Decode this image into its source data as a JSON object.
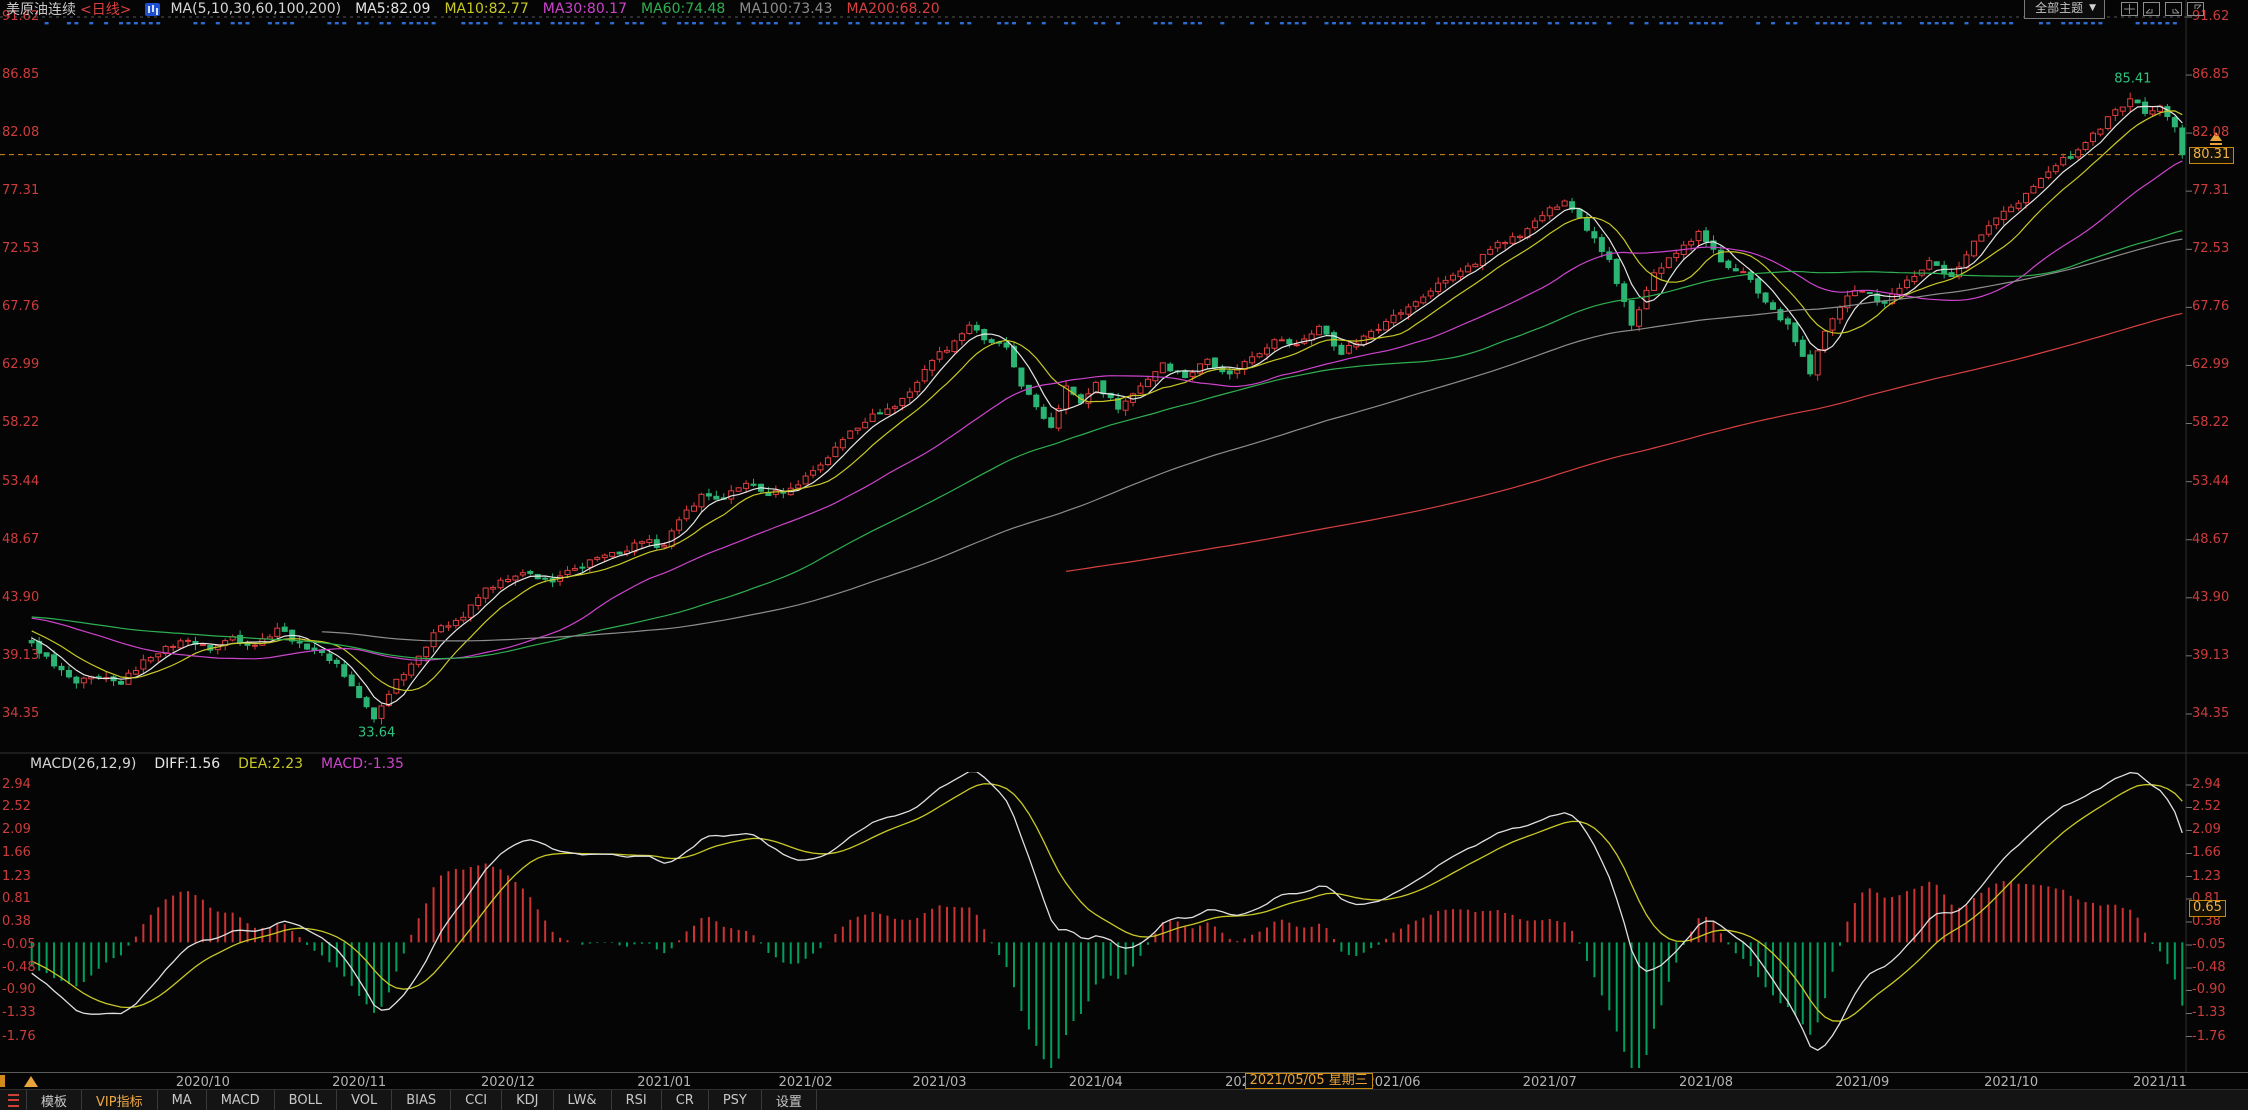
{
  "header": {
    "symbol": "美原油连续",
    "period": "<日线>",
    "ma_title": "MA(5,10,30,60,100,200)",
    "ma_values": [
      {
        "label": "MA5:82.09",
        "color": "#e6e6e6"
      },
      {
        "label": "MA10:82.77",
        "color": "#c9c926"
      },
      {
        "label": "MA30:80.17",
        "color": "#cc44cc"
      },
      {
        "label": "MA60:74.48",
        "color": "#2faf50"
      },
      {
        "label": "MA100:73.43",
        "color": "#8d8d8d"
      },
      {
        "label": "MA200:68.20",
        "color": "#d84040"
      }
    ]
  },
  "top_controls": {
    "dropdown_label": "全部主题",
    "caret": "▼",
    "icons": [
      "layout-grid-icon",
      "layout-bottom-left-icon",
      "layout-bottom-right-icon",
      "layout-top-right-icon"
    ]
  },
  "tags": {
    "price": "80.31",
    "macd": "0.65"
  },
  "macd_header": {
    "title": "MACD(26,12,9)",
    "diff": "DIFF:1.56",
    "diff_color": "#e6e6e6",
    "dea": "DEA:2.23",
    "dea_color": "#c9c926",
    "macd": "MACD:-1.35",
    "macd_color": "#cc44cc"
  },
  "x_axis": {
    "months": [
      {
        "label": "2020/10",
        "bar": 23
      },
      {
        "label": "2020/11",
        "bar": 44
      },
      {
        "label": "2020/12",
        "bar": 64
      },
      {
        "label": "2021/01",
        "bar": 85
      },
      {
        "label": "2021/02",
        "bar": 104
      },
      {
        "label": "2021/03",
        "bar": 122
      },
      {
        "label": "2021/04",
        "bar": 143
      },
      {
        "label": "2021/05",
        "bar": 164
      },
      {
        "label": "2021/06",
        "bar": 183
      },
      {
        "label": "2021/07",
        "bar": 204
      },
      {
        "label": "2021/08",
        "bar": 225
      },
      {
        "label": "2021/09",
        "bar": 246
      },
      {
        "label": "2021/10",
        "bar": 266
      },
      {
        "label": "2021/11",
        "bar": 286
      }
    ],
    "highlight": {
      "label": "2021/05/05 星期三",
      "bar": 163
    }
  },
  "footer": {
    "items": [
      "模板",
      "VIP指标",
      "MA",
      "MACD",
      "BOLL",
      "VOL",
      "BIAS",
      "CCI",
      "KDJ",
      "LW&",
      "RSI",
      "CR",
      "PSY",
      "设置"
    ],
    "active": "VIP指标"
  },
  "chart_data": {
    "type": "candlestick",
    "title": "美原油连续 <日线> — WTI crude oil continuous daily candles with MA(5,10,30,60,100,200) overlay and MACD(26,12,9) sub-chart",
    "price_axis": {
      "ticks": [
        91.62,
        86.85,
        82.08,
        77.31,
        72.53,
        67.76,
        62.99,
        58.22,
        53.44,
        48.67,
        43.9,
        39.13,
        34.35
      ]
    },
    "macd_axis": {
      "ticks": [
        2.94,
        2.52,
        2.09,
        1.66,
        1.23,
        0.81,
        0.38,
        -0.05,
        -0.48,
        -0.9,
        -1.33,
        -1.76
      ]
    },
    "last_price": 80.31,
    "dashed_price_line": 80.31,
    "peak": {
      "bar": 282,
      "price": 85.41,
      "label": "85.41"
    },
    "trough": {
      "bar": 46,
      "price": 33.64,
      "label": "33.64"
    },
    "bars": 290,
    "history": 60,
    "noise": 0.55,
    "ma_periods": [
      {
        "n": 5,
        "color": "#e6e6e6"
      },
      {
        "n": 10,
        "color": "#c9c926"
      },
      {
        "n": 30,
        "color": "#cc44cc"
      },
      {
        "n": 60,
        "color": "#2faf50"
      },
      {
        "n": 100,
        "color": "#8d8d8d"
      },
      {
        "n": 200,
        "color": "#d84040"
      }
    ],
    "macd_params": {
      "fast": 12,
      "slow": 26,
      "signal": 9
    },
    "colors": {
      "up": "#e03e3e",
      "down": "#2cb474",
      "hist_up": "#cc3333",
      "hist_down": "#00a05c",
      "diff": "#e0e0e0",
      "dea": "#c9c926",
      "axis_text": "#cc3c3c",
      "grid": "#555555",
      "accent_orange": "#d28a1e",
      "signal_dot": "#2d6bd0",
      "annotation_green": "#2ec47e"
    },
    "anchors": [
      [
        -60,
        41.8
      ],
      [
        -52,
        42.6
      ],
      [
        -45,
        42.1
      ],
      [
        -38,
        42.8
      ],
      [
        -30,
        42.4
      ],
      [
        -22,
        42.9
      ],
      [
        -15,
        43.1
      ],
      [
        -8,
        42.0
      ],
      [
        -3,
        40.8
      ],
      [
        0,
        40.2
      ],
      [
        3,
        38.3
      ],
      [
        6,
        36.9
      ],
      [
        9,
        37.4
      ],
      [
        12,
        36.8
      ],
      [
        15,
        38.8
      ],
      [
        18,
        39.9
      ],
      [
        21,
        40.4
      ],
      [
        24,
        39.6
      ],
      [
        27,
        40.7
      ],
      [
        30,
        40.0
      ],
      [
        33,
        41.4
      ],
      [
        36,
        40.2
      ],
      [
        39,
        39.4
      ],
      [
        41,
        38.5
      ],
      [
        44,
        35.7
      ],
      [
        46,
        33.95
      ],
      [
        49,
        37.2
      ],
      [
        52,
        39.1
      ],
      [
        55,
        41.6
      ],
      [
        58,
        42.3
      ],
      [
        61,
        44.7
      ],
      [
        64,
        45.4
      ],
      [
        67,
        45.9
      ],
      [
        70,
        45.2
      ],
      [
        73,
        46.3
      ],
      [
        76,
        47.2
      ],
      [
        79,
        47.5
      ],
      [
        82,
        48.5
      ],
      [
        85,
        48.2
      ],
      [
        87,
        50.3
      ],
      [
        90,
        52.4
      ],
      [
        93,
        52.0
      ],
      [
        96,
        53.3
      ],
      [
        99,
        52.3
      ],
      [
        102,
        52.9
      ],
      [
        104,
        53.9
      ],
      [
        107,
        55.4
      ],
      [
        110,
        57.6
      ],
      [
        113,
        59.0
      ],
      [
        116,
        59.6
      ],
      [
        119,
        61.6
      ],
      [
        121,
        63.4
      ],
      [
        124,
        65.0
      ],
      [
        126,
        66.3
      ],
      [
        128,
        65.1
      ],
      [
        131,
        64.5
      ],
      [
        133,
        61.3
      ],
      [
        135,
        59.6
      ],
      [
        137,
        57.9
      ],
      [
        139,
        61.3
      ],
      [
        141,
        59.9
      ],
      [
        143,
        61.6
      ],
      [
        146,
        59.4
      ],
      [
        149,
        61.3
      ],
      [
        152,
        63.2
      ],
      [
        155,
        62.0
      ],
      [
        158,
        63.5
      ],
      [
        161,
        62.3
      ],
      [
        164,
        63.7
      ],
      [
        167,
        65.1
      ],
      [
        170,
        64.7
      ],
      [
        173,
        66.2
      ],
      [
        176,
        63.9
      ],
      [
        179,
        65.4
      ],
      [
        182,
        66.6
      ],
      [
        185,
        67.8
      ],
      [
        188,
        69.1
      ],
      [
        191,
        70.4
      ],
      [
        194,
        71.3
      ],
      [
        197,
        73.1
      ],
      [
        200,
        73.6
      ],
      [
        203,
        75.3
      ],
      [
        206,
        76.5
      ],
      [
        209,
        74.1
      ],
      [
        212,
        71.7
      ],
      [
        215,
        66.3
      ],
      [
        218,
        70.6
      ],
      [
        221,
        72.2
      ],
      [
        224,
        74.0
      ],
      [
        227,
        71.5
      ],
      [
        230,
        70.7
      ],
      [
        233,
        68.2
      ],
      [
        236,
        66.4
      ],
      [
        239,
        62.3
      ],
      [
        241,
        65.8
      ],
      [
        244,
        68.7
      ],
      [
        246,
        69.1
      ],
      [
        249,
        68.1
      ],
      [
        252,
        70.0
      ],
      [
        255,
        71.6
      ],
      [
        258,
        70.3
      ],
      [
        261,
        73.2
      ],
      [
        264,
        75.1
      ],
      [
        266,
        76.0
      ],
      [
        269,
        77.7
      ],
      [
        272,
        79.4
      ],
      [
        275,
        80.7
      ],
      [
        278,
        82.4
      ],
      [
        280,
        84.0
      ],
      [
        282,
        84.9
      ],
      [
        284,
        83.7
      ],
      [
        286,
        84.3
      ],
      [
        288,
        82.6
      ],
      [
        289,
        80.31
      ]
    ],
    "pins": [
      [
        46,
        33.95
      ],
      [
        282,
        84.9
      ],
      [
        289,
        80.31
      ]
    ]
  }
}
